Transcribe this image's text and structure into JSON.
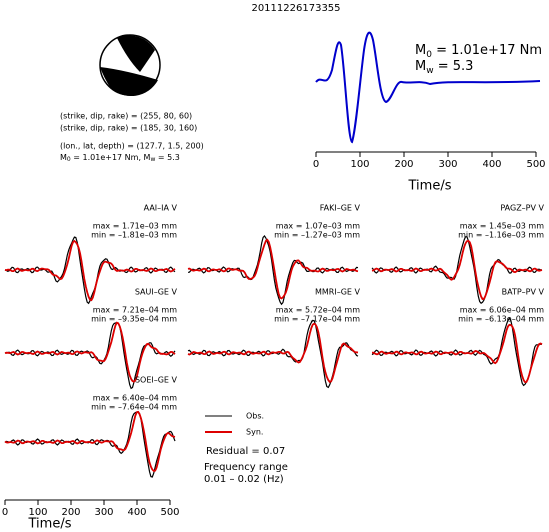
{
  "title": "20111226173355",
  "mechanism": {
    "lines": [
      "(strike, dip, rake) = (255, 80, 60)",
      "(strike, dip, rake) = (185, 30, 160)",
      "(lon., lat, depth) = (127.7, 1.5, 200)"
    ],
    "moment": {
      "m": "M",
      "m_sub": "0",
      "moment_text": " = 1.01e+17 Nm, ",
      "w": "M",
      "w_sub": "w",
      "mag_text": " = 5.3"
    }
  },
  "stf": {
    "m0": {
      "symbol": "M",
      "sub": "0",
      "text": " = 1.01e+17 Nm"
    },
    "mw": {
      "symbol": "M",
      "sub": "w",
      "text": " = 5.3"
    },
    "xticks": [
      "0",
      "100",
      "200",
      "300",
      "400",
      "500"
    ],
    "xlabel": "Time/s"
  },
  "stations": [
    {
      "name": "AAI–IA V",
      "max": "max = 1.71e–03 mm",
      "min": "min = –1.81e–03 mm"
    },
    {
      "name": "FAKI–GE V",
      "max": "max = 1.07e–03 mm",
      "min": "min = –1.27e–03 mm"
    },
    {
      "name": "PAGZ–PV V",
      "max": "max = 1.45e–03 mm",
      "min": "min = –1.16e–03 mm"
    },
    {
      "name": "SAUI–GE V",
      "max": "max = 7.21e–04 mm",
      "min": "min = –9.35e–04 mm"
    },
    {
      "name": "MMRI–GE V",
      "max": "max = 5.72e–04 mm",
      "min": "min = –7.17e–04 mm"
    },
    {
      "name": "BATP–PV V",
      "max": "max = 6.06e–04 mm",
      "min": "min = –6.13e–04 mm"
    },
    {
      "name": "SOEI–GE V",
      "max": "max = 6.40e–04 mm",
      "min": "min = –7.64e–04 mm"
    }
  ],
  "legend": {
    "obs": "Obs.",
    "syn": "Syn.",
    "residual": "Residual = 0.07",
    "freq_title": "Frequency range",
    "freq": "0.01 – 0.02 (Hz)"
  },
  "axis": {
    "xticks": [
      "0",
      "100",
      "200",
      "300",
      "400",
      "500"
    ],
    "xlabel": "Time/s"
  }
}
